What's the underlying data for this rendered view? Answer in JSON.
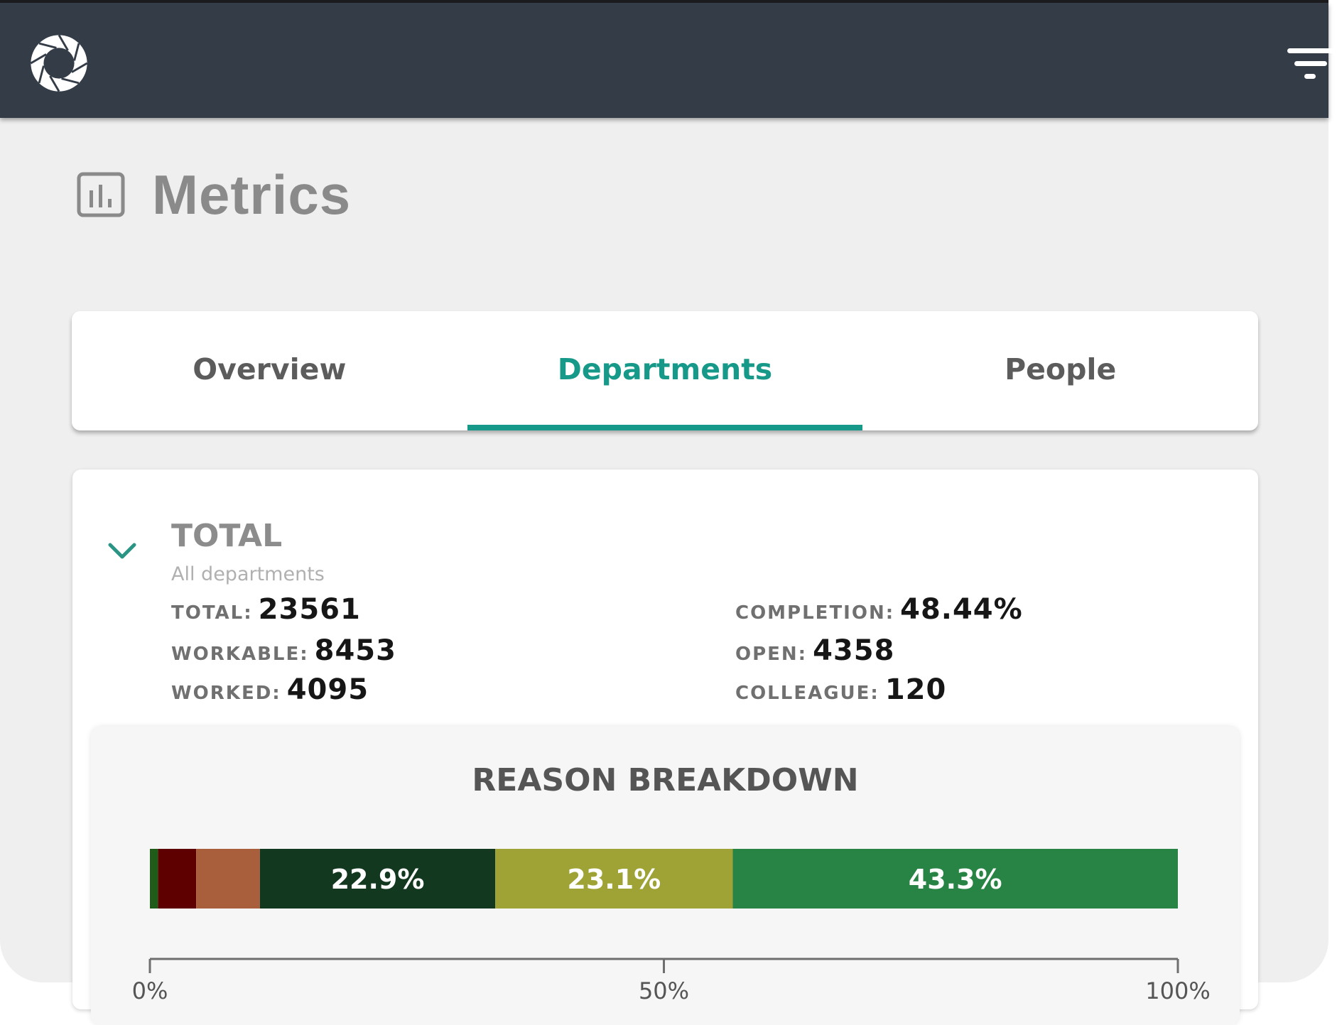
{
  "header": {
    "logo_icon": "aperture-logo-icon",
    "filter_icon": "filter-icon",
    "colors": {
      "background": "#343c48",
      "icon": "#ffffff"
    }
  },
  "page": {
    "title": "Metrics",
    "title_icon": "bar-chart-icon"
  },
  "tabs": {
    "active_index": 1,
    "accent_color": "#17998a",
    "items": [
      {
        "label": "Overview"
      },
      {
        "label": "Departments"
      },
      {
        "label": "People"
      }
    ]
  },
  "section": {
    "expand_icon": "chevron-down-icon",
    "heading": "TOTAL",
    "subheading": "All departments",
    "stats_left": [
      {
        "label": "TOTAL:",
        "value": "23561"
      },
      {
        "label": "WORKABLE:",
        "value": "8453"
      },
      {
        "label": "WORKED:",
        "value": "4095"
      }
    ],
    "stats_right": [
      {
        "label": "COMPLETION:",
        "value": "48.44%"
      },
      {
        "label": "OPEN:",
        "value": "4358"
      },
      {
        "label": "COLLEAGUE:",
        "value": "120"
      }
    ]
  },
  "reason_breakdown": {
    "title": "REASON BREAKDOWN"
  },
  "chart_data": {
    "type": "bar",
    "orientation": "horizontal-stacked",
    "title": "REASON BREAKDOWN",
    "xlabel": "",
    "ylabel": "",
    "xlim": [
      0,
      100
    ],
    "x_ticks": [
      "0%",
      "50%",
      "100%"
    ],
    "grid": false,
    "legend": "none",
    "categories": [
      "TOTAL"
    ],
    "series": [
      {
        "name": "segment-1",
        "value": 0.8,
        "color": "#1f5c1a",
        "label": ""
      },
      {
        "name": "segment-2",
        "value": 3.7,
        "color": "#5e0000",
        "label": ""
      },
      {
        "name": "segment-3",
        "value": 6.2,
        "color": "#a95f3c",
        "label": ""
      },
      {
        "name": "segment-4",
        "value": 22.9,
        "color": "#12381f",
        "label": "22.9%"
      },
      {
        "name": "segment-5",
        "value": 23.1,
        "color": "#9fa336",
        "label": "23.1%"
      },
      {
        "name": "segment-6",
        "value": 43.3,
        "color": "#288445",
        "label": "43.3%"
      }
    ]
  }
}
